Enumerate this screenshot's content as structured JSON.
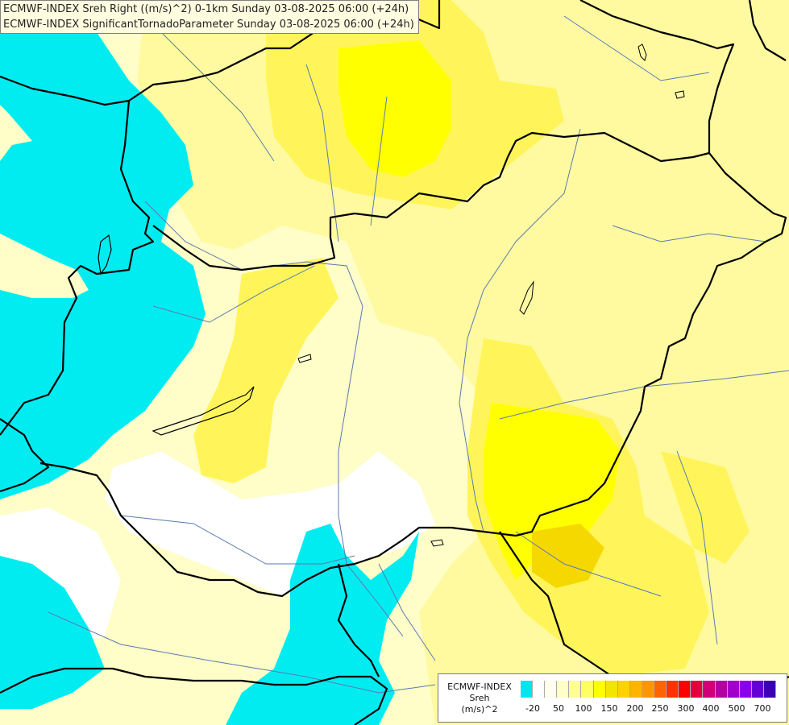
{
  "header": {
    "title_line1": "ECMWF-INDEX Sreh Right ((m/s)^2) 0-1km Sunday 03-08-2025 06:00 (+24h)",
    "title_line2": "ECMWF-INDEX SignificantTornadoParameter Sunday 03-08-2025 06:00 (+24h)"
  },
  "legend": {
    "line1": "ECMWF-INDEX",
    "line2": "Sreh",
    "line3": "(m/s)^2",
    "colors": [
      "#00e5ee",
      "#ffffff",
      "#fffff0",
      "#ffffc8",
      "#ffff96",
      "#ffff64",
      "#ffff00",
      "#f0e600",
      "#ffd200",
      "#ffb400",
      "#ff9600",
      "#ff6400",
      "#ff3200",
      "#ff0000",
      "#e6003c",
      "#d20078",
      "#b400a0",
      "#a000c8",
      "#8c00e6",
      "#6400d2",
      "#3c00b4"
    ],
    "ticks": [
      "-20",
      "50",
      "100",
      "150",
      "200",
      "250",
      "300",
      "400",
      "500",
      "700"
    ]
  },
  "map": {
    "colors": {
      "cyan": "#00ecf0",
      "very_light": "#fffdc8",
      "light": "#fffaa0",
      "mid": "#fff55a",
      "yellow": "#ffff00",
      "gold": "#f5d800",
      "border": "#000000",
      "river": "#5a7ab4"
    }
  }
}
